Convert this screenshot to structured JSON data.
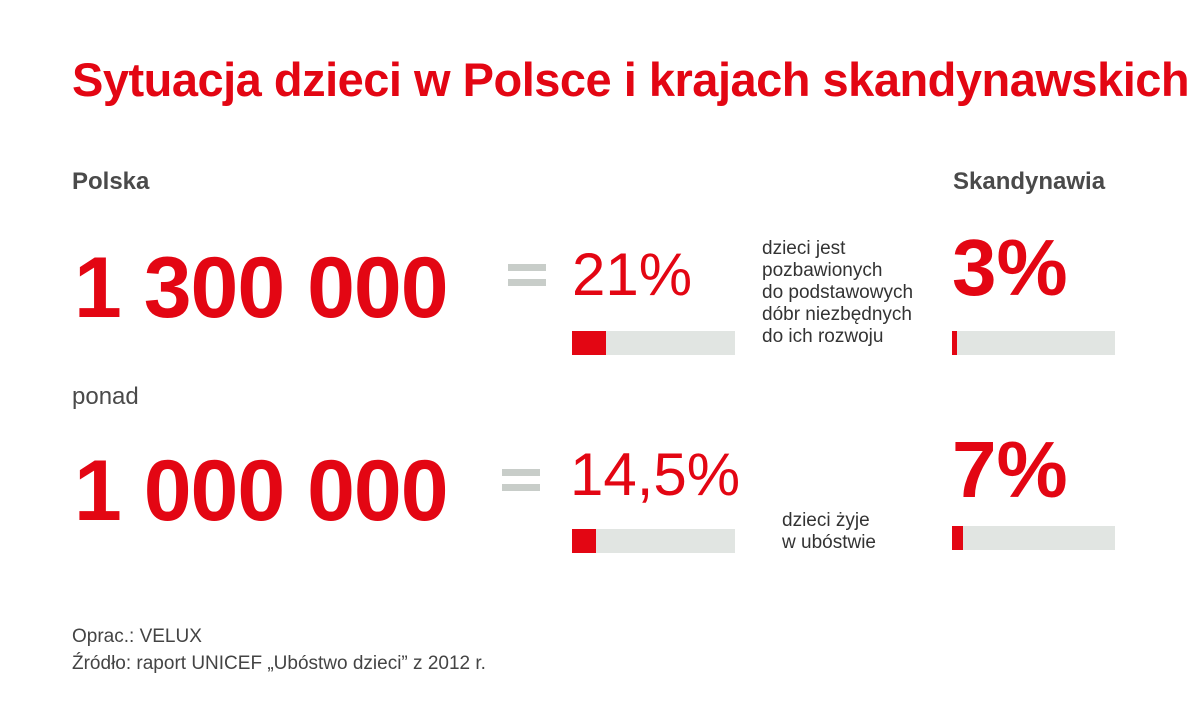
{
  "chart_data": {
    "type": "bar",
    "title": "Sytuacja dzieci w Polsce i krajach skandynawskich",
    "regions": [
      "Polska",
      "Skandynawia"
    ],
    "rows": [
      {
        "prefix": "",
        "count": "1 300 000",
        "description": [
          "dzieci jest",
          "pozbawionych",
          "do podstawowych",
          "dóbr niezbędnych",
          "do ich rozwoju"
        ],
        "polska_label": "21%",
        "polska_value": 21,
        "skandynawia_label": "3%",
        "skandynawia_value": 3
      },
      {
        "prefix": "ponad",
        "count": "1 000 000",
        "description": [
          "dzieci żyje",
          "w ubóstwie"
        ],
        "polska_label": "14,5%",
        "polska_value": 14.5,
        "skandynawia_label": "7%",
        "skandynawia_value": 7
      }
    ],
    "bar_max": 100,
    "colors": {
      "accent": "#e30613",
      "track": "#e1e5e2",
      "equals": "#c8cdc9"
    }
  },
  "footer": {
    "credit": "Oprac.: VELUX",
    "source": "Źródło: raport UNICEF „Ubóstwo dzieci” z 2012 r."
  }
}
